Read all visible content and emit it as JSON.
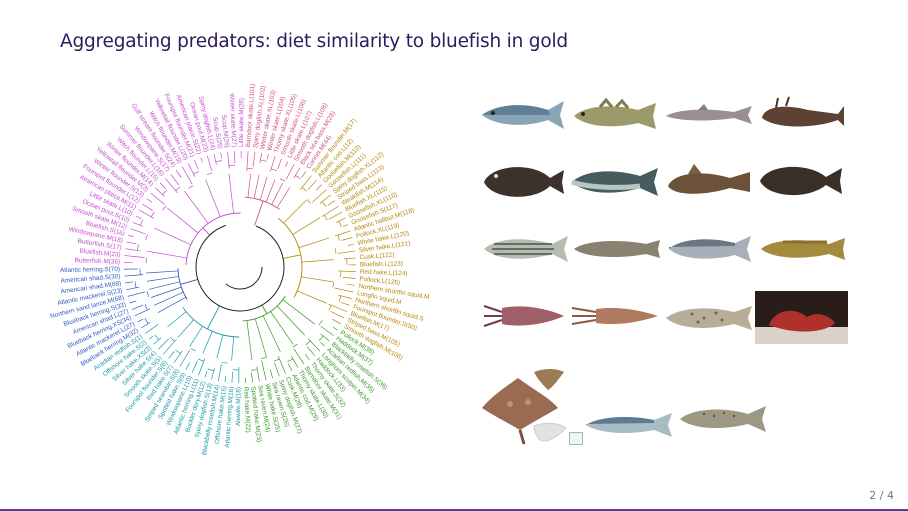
{
  "slide": {
    "title": "Aggregating predators: diet similarity to bluefish in gold",
    "page_indicator": "2 / 4"
  },
  "colors": {
    "title": "#2e1a5e",
    "magenta_cluster": "#c24ccf",
    "blue_cluster": "#2f5bbf",
    "teal_cluster": "#1a9aa6",
    "green_cluster": "#3a9a2a",
    "gold_cluster": "#b8860b",
    "pink_cluster": "#d0508a"
  },
  "dendrogram": {
    "magenta_labels": [
      "Butterfish.M(36)",
      "Bluefish.M(23)",
      "Butterfish.S(17)",
      "Windowpane.M(18)",
      "Bluefish.S(16)",
      "Smooth skate.M(12)",
      "Ocean pout.S(10)",
      "Little skate.L(10)",
      "American plaice.M(11)",
      "Fourspot flounder.L(12)",
      "Winter flounder.S(13)",
      "Yellowtail flounder.M(3)",
      "Winter flounder.M(14)",
      "Witch flounder.L(15)",
      "Summer flounder.L(16)",
      "Windowpane.S(17)",
      "Gulf stream flounder.S(24)",
      "Witch flounder.M(19)",
      "Yellowtail flounder.L(20)",
      "Fourspot flounder.M(21)",
      "American plaice.S(22)",
      "Ocean pout.M(23)",
      "Spiny dogfish.L(24)",
      "Scup.S(25)",
      "Scup.M(26)",
      "Winter skate.M(27)",
      "Little skate.M(28)"
    ],
    "blue_labels": [
      "Blueback herring.M(32)",
      "Atlantic mackerel.L(27)",
      "Blueback herring.XS(34)",
      "American shad.L(27)",
      "Blueback herring.S(33)",
      "Northern sand lance.M(68)",
      "Atlantic mackerel.S(23)",
      "American shad.M(68)",
      "American shad.S(30)",
      "Atlantic herring.S(70)"
    ],
    "teal_labels": [
      "Alewife.M(18)",
      "Atlantic herring.M(16)",
      "Offshore hake.M(15)",
      "Blackbelly rosefish.M(14)",
      "Spiny dogfish.S(13)",
      "Buckler dory.M(12)",
      "Atlantic herring.L(11)",
      "Windowpane.L(10)",
      "Spotted hake.S(9)",
      "Striped searobin.S(8)",
      "Red hake.S(7)",
      "Fourspot flounder.S(6)",
      "Smooth skate.S(5)",
      "Silver hake.S(4)",
      "Silver hake.XS(3)",
      "Offshore hake.S(2)",
      "Acadian redfish.S(1)"
    ],
    "green_labels": [
      "Pollock.M(38)",
      "Haddock.M(37)",
      "Blackbelly rosefish.S(36)",
      "Acadian redfish.M(35)",
      "Longhorn sculpin.M(34)",
      "Haddock.L(33)",
      "Thorny skate.S(32)",
      "Barndoor skate.M(31)",
      "Thorny skate.L(30)",
      "Atlantic cod.M(29)",
      "Cusk.M(28)",
      "Spiny dogfish.M(27)",
      "Sea raven.S(26)",
      "White hake.S(25)",
      "Sea raven.M(24)",
      "Spotted hake.M(23)",
      "Red hake.M(22)"
    ],
    "gold_labels": [
      "Summer flounder.M(17)",
      "Atlantic cod.L(12)",
      "Goosefish.M(110)",
      "Goosefish.L(111)",
      "Spiny dogfish.XL(112)",
      "Striped bass.L(113)",
      "Weakfish.M(114)",
      "Bluefish.XL(115)",
      "Goosefish.XL(116)",
      "Goosefish.S(117)",
      "Atlantic halibut.M(118)",
      "Pollock.XL(119)",
      "White hake.L(120)",
      "Silver hake.L(121)",
      "Cusk.L(122)",
      "Bluefish.L(123)",
      "Red hake.L(124)",
      "Pollock.L(125)",
      "Northern shortfin squid.M",
      "Longfin squid.M",
      "Northern shortfin squid.S",
      "Fourspot flounder.S(50)",
      "Bluefish.M(17)",
      "Striped bass.M(105)",
      "Smooth dogfish.M(106)"
    ],
    "pink_labels": [
      "Barndoor skate.L(101)",
      "Spiny dogfish.XL(102)",
      "Winter skate.XL(103)",
      "Winter skate.L(104)",
      "Thorny skate.XL(105)",
      "Smooth skate.L(106)",
      "Little skate.L(107)",
      "Smooth dogfish.L(108)",
      "Black sea bass.M(28)",
      "Cunner.M(44)"
    ]
  },
  "species_images": [
    {
      "name": "bluefish",
      "icon": "bluefish-fish-icon"
    },
    {
      "name": "atlantic cod",
      "icon": "cod-fish-icon"
    },
    {
      "name": "spiny dogfish",
      "icon": "dogfish-shark-icon"
    },
    {
      "name": "goosefish",
      "icon": "goosefish-icon"
    },
    {
      "name": "summer flounder",
      "icon": "flounder-icon"
    },
    {
      "name": "pollock",
      "icon": "pollock-fish-icon"
    },
    {
      "name": "sea raven",
      "icon": "sea-raven-icon"
    },
    {
      "name": "halibut",
      "icon": "halibut-icon"
    },
    {
      "name": "striped bass",
      "icon": "striped-bass-icon"
    },
    {
      "name": "cusk",
      "icon": "cusk-fish-icon"
    },
    {
      "name": "silver hake",
      "icon": "silver-hake-icon"
    },
    {
      "name": "red hake",
      "icon": "red-hake-icon"
    },
    {
      "name": "longfin squid",
      "icon": "longfin-squid-icon"
    },
    {
      "name": "shortfin squid",
      "icon": "shortfin-squid-icon"
    },
    {
      "name": "spotted hake",
      "icon": "spotted-hake-icon"
    },
    {
      "name": "scorpionfish",
      "icon": "scorpionfish-photo-icon"
    },
    {
      "name": "skate",
      "icon": "skate-ray-icon"
    },
    {
      "name": "spanish mackerel",
      "icon": "spanish-mackerel-icon"
    },
    {
      "name": "weakfish",
      "icon": "weakfish-icon"
    }
  ]
}
